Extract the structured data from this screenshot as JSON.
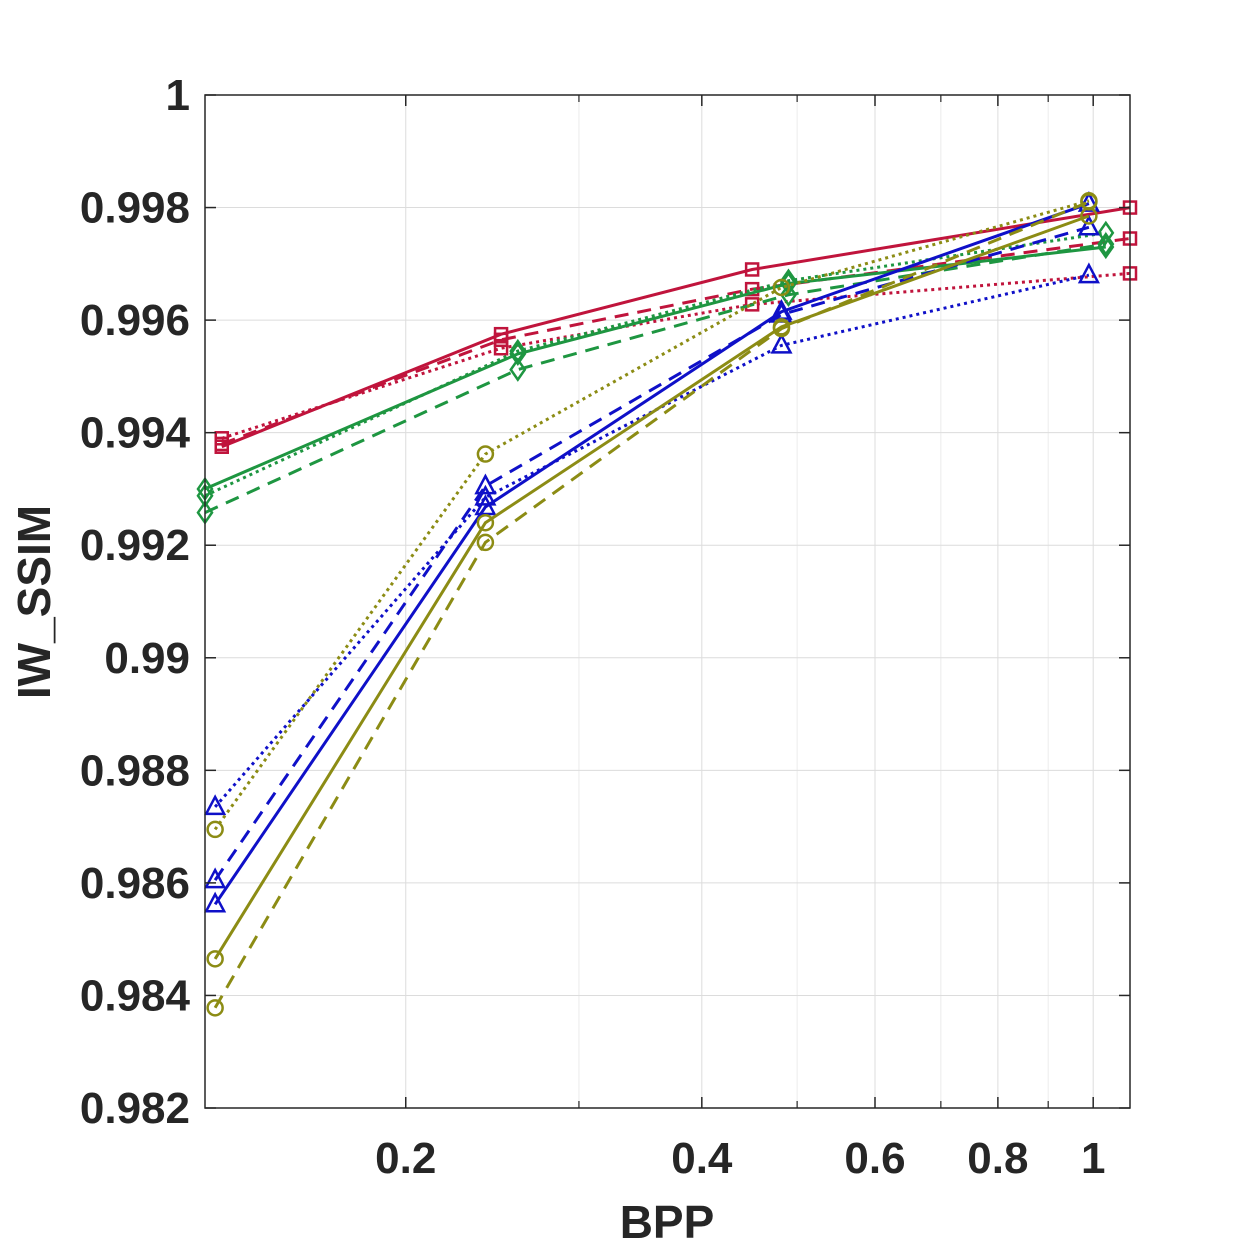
{
  "chart_data": {
    "type": "line",
    "title": "",
    "xlabel": "BPP",
    "ylabel": "IW_SSIM",
    "xscale": "log",
    "xlim": [
      0.125,
      1.09
    ],
    "ylim": [
      0.982,
      1.0
    ],
    "x_ticks": [
      0.2,
      0.4,
      0.6,
      0.8,
      1
    ],
    "x_tick_labels": [
      "0.2",
      "0.4",
      "0.6",
      "0.8",
      "1"
    ],
    "y_ticks": [
      0.982,
      0.984,
      0.986,
      0.988,
      0.99,
      0.992,
      0.994,
      0.996,
      0.998,
      1
    ],
    "y_tick_labels": [
      "0.982",
      "0.984",
      "0.986",
      "0.988",
      "0.99",
      "0.992",
      "0.994",
      "0.996",
      "0.998",
      "1"
    ],
    "grid": true,
    "legend": "none",
    "series": [
      {
        "name": "red-solid",
        "color": "#c0143c",
        "line": "solid",
        "marker": "square",
        "x": [
          0.13,
          0.25,
          0.45,
          1.09
        ],
        "y": [
          0.99375,
          0.99575,
          0.9969,
          0.998
        ]
      },
      {
        "name": "red-dashed",
        "color": "#c0143c",
        "line": "dashed",
        "marker": "square",
        "x": [
          0.13,
          0.25,
          0.45,
          1.09
        ],
        "y": [
          0.9938,
          0.99565,
          0.99655,
          0.99745
        ]
      },
      {
        "name": "red-dotted",
        "color": "#c0143c",
        "line": "dotted",
        "marker": "square",
        "x": [
          0.13,
          0.25,
          0.45,
          1.09
        ],
        "y": [
          0.9939,
          0.9955,
          0.99628,
          0.99683
        ]
      },
      {
        "name": "green-solid",
        "color": "#1e9641",
        "line": "solid",
        "marker": "diamond",
        "x": [
          0.125,
          0.26,
          0.49,
          1.03
        ],
        "y": [
          0.993,
          0.9954,
          0.99665,
          0.9973
        ]
      },
      {
        "name": "green-dashed",
        "color": "#1e9641",
        "line": "dashed",
        "marker": "diamond",
        "x": [
          0.125,
          0.26,
          0.49,
          1.03
        ],
        "y": [
          0.99258,
          0.99512,
          0.99645,
          0.99735
        ]
      },
      {
        "name": "green-dotted",
        "color": "#1e9641",
        "line": "dotted",
        "marker": "diamond",
        "x": [
          0.125,
          0.26,
          0.49,
          1.03
        ],
        "y": [
          0.99288,
          0.99545,
          0.9967,
          0.99755
        ]
      },
      {
        "name": "blue-solid",
        "color": "#0f10c8",
        "line": "solid",
        "marker": "triangle",
        "x": [
          0.128,
          0.241,
          0.482,
          0.99
        ],
        "y": [
          0.98562,
          0.99268,
          0.99615,
          0.99807
        ]
      },
      {
        "name": "blue-dashed",
        "color": "#0f10c8",
        "line": "dashed",
        "marker": "triangle",
        "x": [
          0.128,
          0.241,
          0.482,
          0.99
        ],
        "y": [
          0.98605,
          0.99305,
          0.9961,
          0.99765
        ]
      },
      {
        "name": "blue-dotted",
        "color": "#0f10c8",
        "line": "dotted",
        "marker": "triangle",
        "x": [
          0.128,
          0.241,
          0.482,
          0.99
        ],
        "y": [
          0.98735,
          0.99285,
          0.99555,
          0.9968
        ]
      },
      {
        "name": "olive-solid",
        "color": "#8c8c14",
        "line": "solid",
        "marker": "circle",
        "x": [
          0.128,
          0.241,
          0.482,
          0.99
        ],
        "y": [
          0.98465,
          0.9924,
          0.99588,
          0.99785
        ]
      },
      {
        "name": "olive-dashed",
        "color": "#8c8c14",
        "line": "dashed",
        "marker": "circle",
        "x": [
          0.128,
          0.241,
          0.482,
          0.99
        ],
        "y": [
          0.98378,
          0.99205,
          0.99585,
          0.9981
        ]
      },
      {
        "name": "olive-dotted",
        "color": "#8c8c14",
        "line": "dotted",
        "marker": "circle",
        "x": [
          0.128,
          0.241,
          0.482,
          0.99
        ],
        "y": [
          0.98695,
          0.99362,
          0.99658,
          0.99812
        ]
      }
    ]
  }
}
